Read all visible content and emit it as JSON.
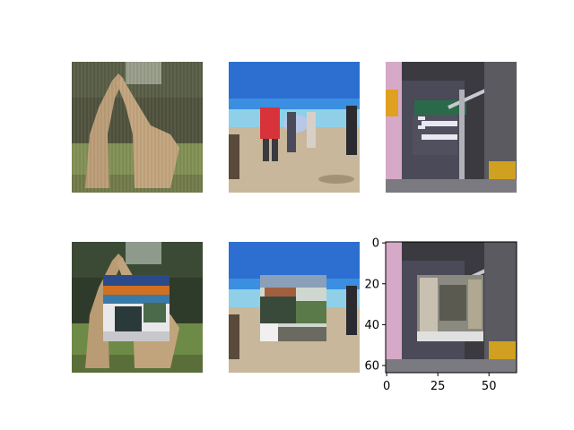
{
  "figure": {
    "background": "#ffffff",
    "layout": "2x3 grid of image panels"
  },
  "chart_data": [
    {
      "type": "image",
      "name": "row-1-col-1",
      "content": "two giraffes necking in front of dark green trees, grass below",
      "axes_visible": false,
      "extent": [
        0,
        63,
        63,
        0
      ]
    },
    {
      "type": "image",
      "name": "row-1-col-2",
      "content": "people on a sandy beach with blue sky and ocean; person in red shirt, person holding surfboard",
      "axes_visible": false,
      "extent": [
        0,
        63,
        63,
        0
      ]
    },
    {
      "type": "image",
      "name": "row-1-col-3",
      "content": "city street with green street sign and storefront with large white lettering",
      "axes_visible": false,
      "extent": [
        0,
        63,
        63,
        0
      ]
    },
    {
      "type": "image",
      "name": "row-2-col-1",
      "content": "giraffe image with a pasted rectangular patch of another scene",
      "axes_visible": false,
      "extent": [
        0,
        63,
        63,
        0
      ],
      "patch": {
        "x": [
          15,
          47
        ],
        "y": [
          16,
          48
        ]
      }
    },
    {
      "type": "image",
      "name": "row-2-col-2",
      "content": "beach image with a pasted rectangular patch of another scene",
      "axes_visible": false,
      "extent": [
        0,
        63,
        63,
        0
      ],
      "patch": {
        "x": [
          15,
          47
        ],
        "y": [
          16,
          48
        ]
      }
    },
    {
      "type": "image",
      "name": "row-2-col-3",
      "content": "street image with a pasted rectangular patch of another scene",
      "axes_visible": true,
      "extent": [
        0,
        63,
        63,
        0
      ],
      "patch": {
        "x": [
          15,
          47
        ],
        "y": [
          16,
          48
        ]
      },
      "x_ticks": [
        0,
        25,
        50
      ],
      "x_tick_labels": [
        "0",
        "25",
        "50"
      ],
      "y_ticks": [
        0,
        20,
        40,
        60
      ],
      "y_tick_labels": [
        "0",
        "20",
        "40",
        "60"
      ]
    }
  ]
}
